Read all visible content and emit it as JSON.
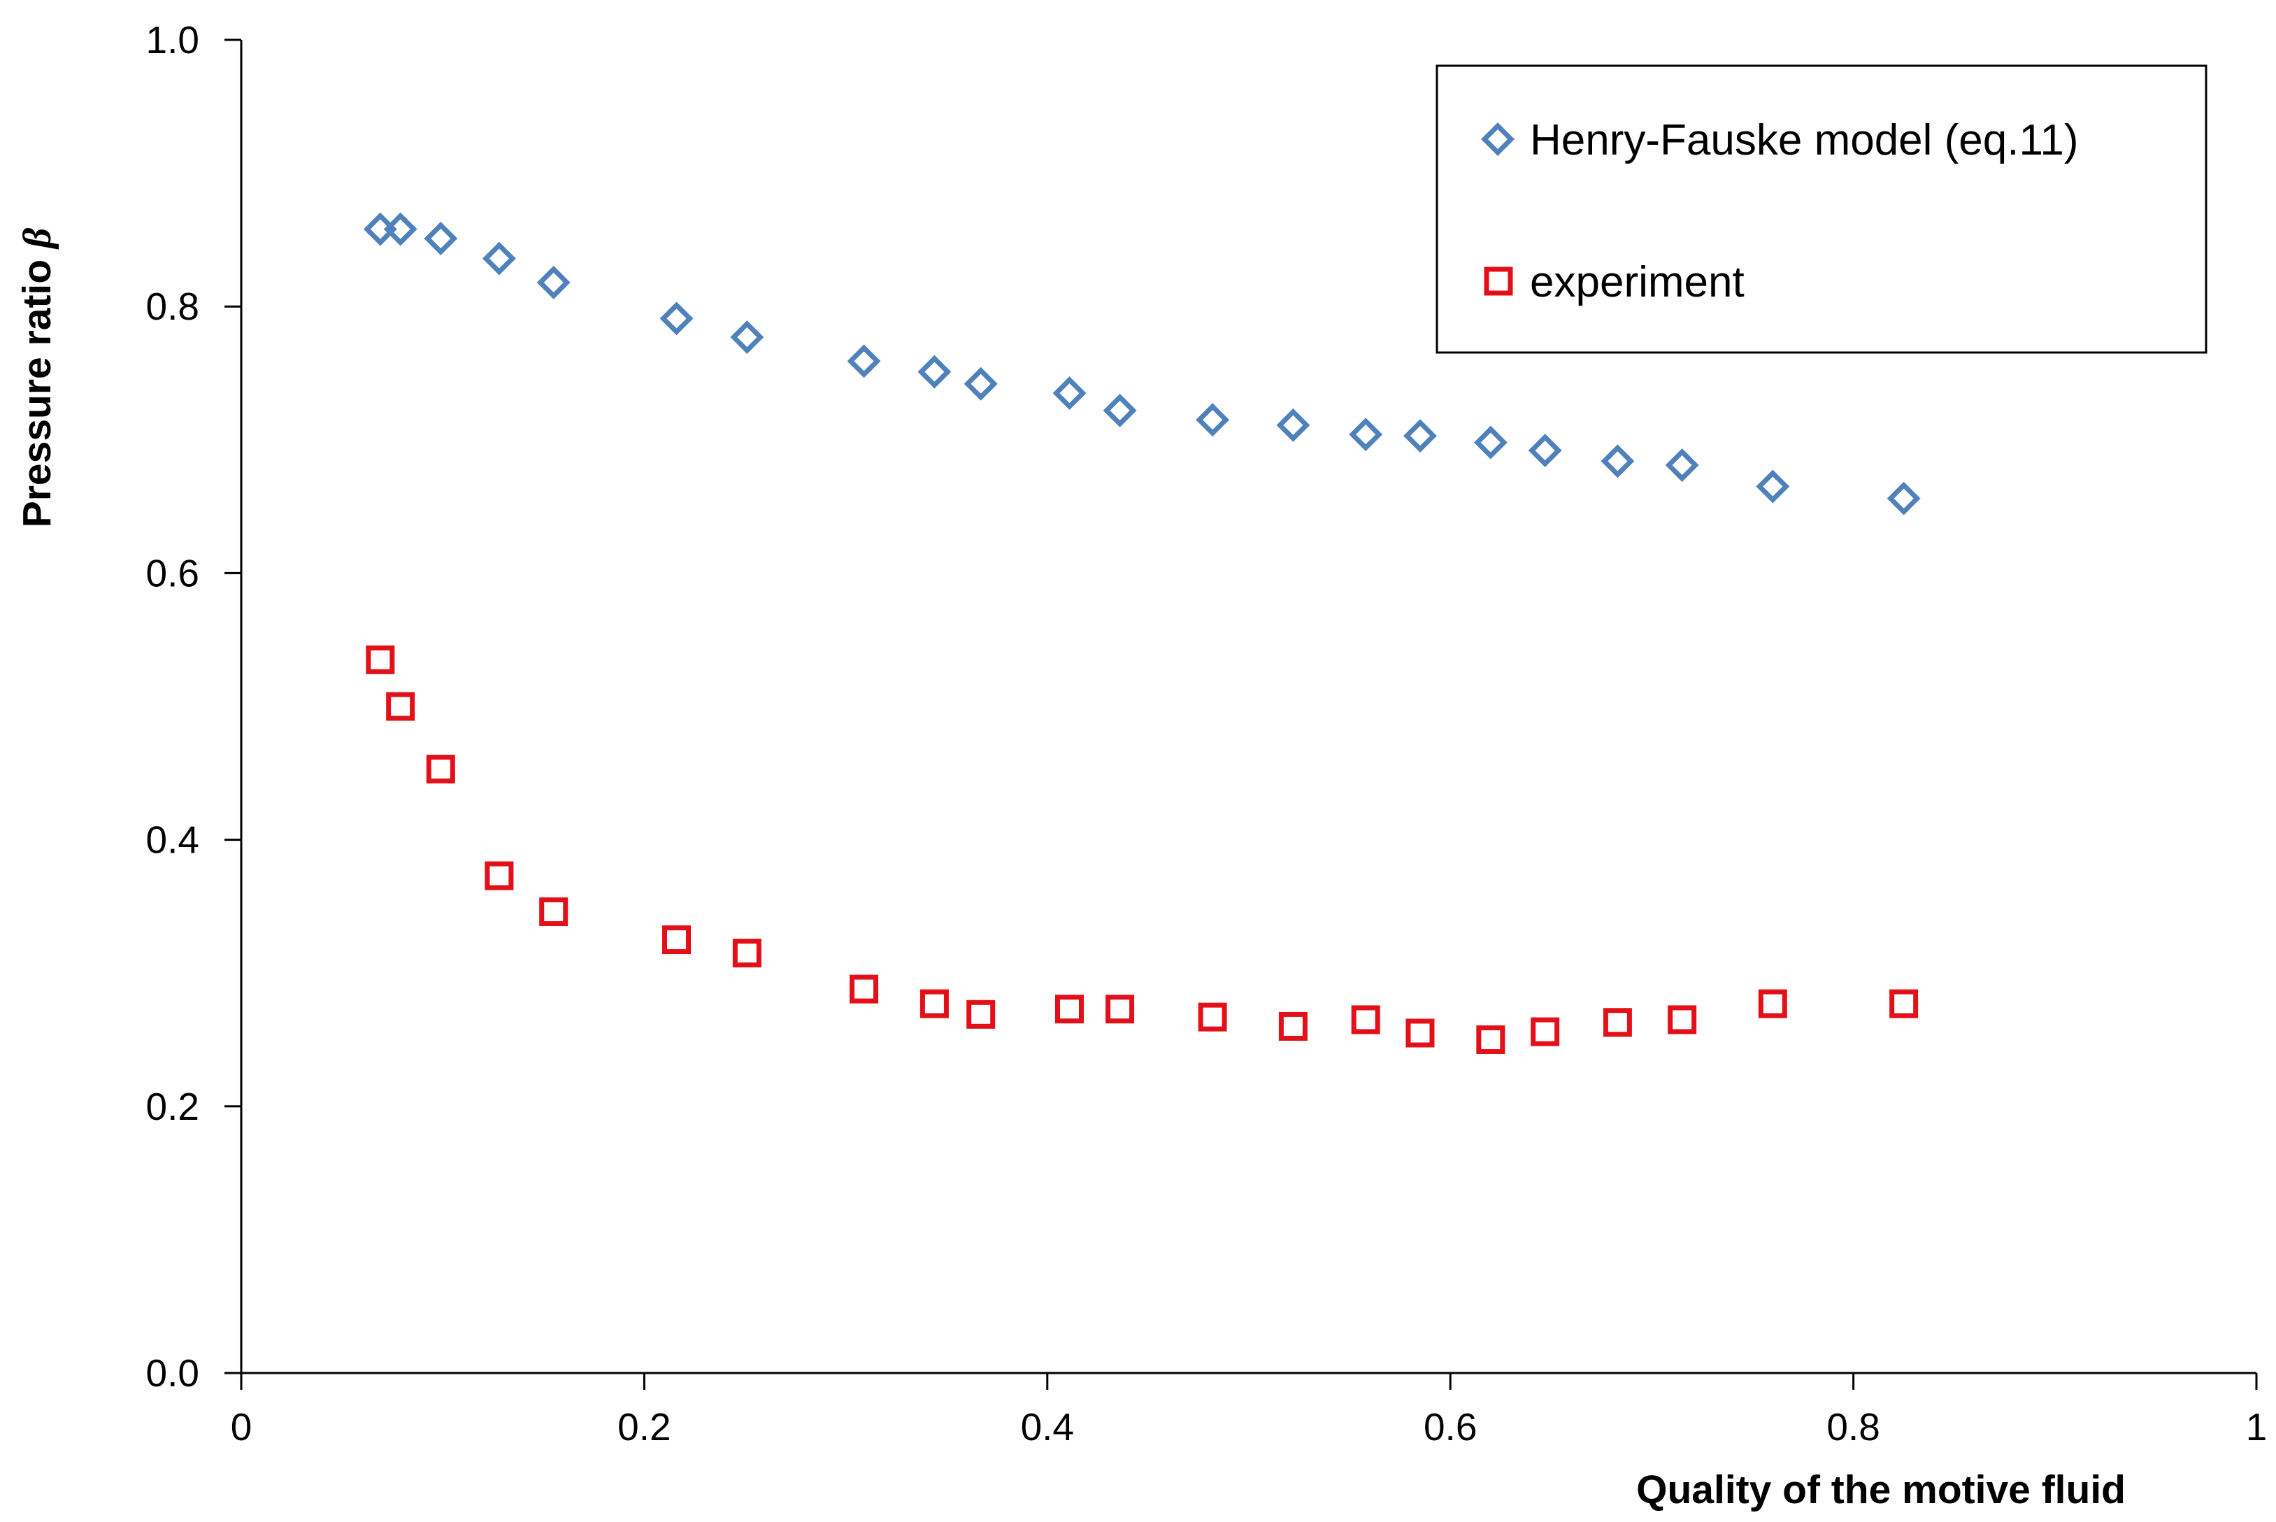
{
  "chart_data": {
    "type": "scatter",
    "title": "",
    "xlabel": "Quality of the motive fluid",
    "ylabel": "Pressure ratio",
    "ylabel_symbol": "β",
    "xlim": [
      0,
      1
    ],
    "ylim": [
      0,
      1
    ],
    "x_ticks": [
      0,
      0.2,
      0.4,
      0.6,
      0.8,
      1
    ],
    "x_tick_labels": [
      "0",
      "0.2",
      "0.4",
      "0.6",
      "0.8",
      "1"
    ],
    "y_ticks": [
      0,
      0.2,
      0.4,
      0.6,
      0.8,
      1
    ],
    "y_tick_labels": [
      "0.0",
      "0.2",
      "0.4",
      "0.6",
      "0.8",
      "1.0"
    ],
    "grid": false,
    "legend_position": "top-right",
    "series": [
      {
        "name": "Henry-Fauske model (eq.11)",
        "marker": "diamond",
        "color": "#4F81BD",
        "x": [
          0.069,
          0.079,
          0.099,
          0.128,
          0.155,
          0.216,
          0.251,
          0.309,
          0.344,
          0.367,
          0.411,
          0.436,
          0.482,
          0.522,
          0.558,
          0.585,
          0.62,
          0.647,
          0.683,
          0.715,
          0.76,
          0.825
        ],
        "y": [
          0.858,
          0.858,
          0.851,
          0.836,
          0.818,
          0.791,
          0.777,
          0.759,
          0.751,
          0.742,
          0.735,
          0.722,
          0.715,
          0.711,
          0.704,
          0.703,
          0.698,
          0.692,
          0.684,
          0.681,
          0.665,
          0.656
        ]
      },
      {
        "name": "experiment",
        "marker": "square",
        "color": "#E3101A",
        "x": [
          0.069,
          0.079,
          0.099,
          0.128,
          0.155,
          0.216,
          0.251,
          0.309,
          0.344,
          0.367,
          0.411,
          0.436,
          0.482,
          0.522,
          0.558,
          0.585,
          0.62,
          0.647,
          0.683,
          0.715,
          0.76,
          0.825
        ],
        "y": [
          0.535,
          0.5,
          0.453,
          0.373,
          0.346,
          0.325,
          0.315,
          0.288,
          0.277,
          0.269,
          0.273,
          0.273,
          0.267,
          0.26,
          0.265,
          0.255,
          0.25,
          0.256,
          0.263,
          0.265,
          0.277,
          0.277
        ]
      }
    ]
  }
}
